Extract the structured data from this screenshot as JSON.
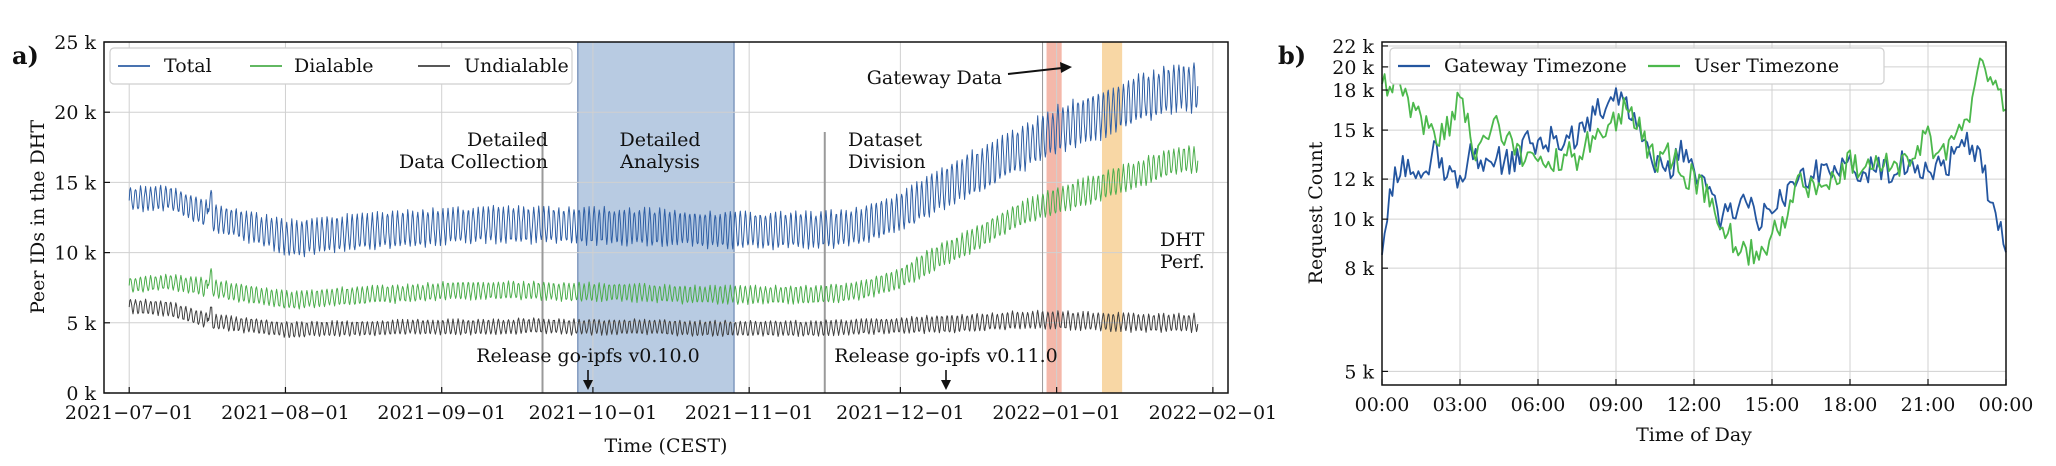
{
  "chart_data": [
    {
      "panel_label": "a)",
      "type": "line",
      "xlabel": "Time (CEST)",
      "ylabel": "Peer IDs in the DHT",
      "x_range": [
        "2021-06-26",
        "2022-02-04"
      ],
      "ylim": [
        0,
        25000
      ],
      "x_ticks": [
        "2021−07−01",
        "2021−08−01",
        "2021−09−01",
        "2021−10−01",
        "2021−11−01",
        "2021−12−01",
        "2022−01−01",
        "2022−02−01"
      ],
      "x_tick_dates": [
        "2021-07-01",
        "2021-08-01",
        "2021-09-01",
        "2021-10-01",
        "2021-11-01",
        "2021-12-01",
        "2022-01-01",
        "2022-02-01"
      ],
      "y_ticks": [
        0,
        5000,
        10000,
        15000,
        20000,
        25000
      ],
      "y_tick_labels": [
        "0 k",
        "5 k",
        "10 k",
        "15 k",
        "20 k",
        "25 k"
      ],
      "grid": true,
      "legend_position": "top-left",
      "series": [
        {
          "name": "Total",
          "color": "#2f5fa5",
          "date": [
            "2021-07-01",
            "2021-07-09",
            "2021-07-17",
            "2021-07-25",
            "2021-08-02",
            "2021-08-10",
            "2021-08-18",
            "2021-08-26",
            "2021-09-03",
            "2021-09-11",
            "2021-09-19",
            "2021-09-27",
            "2021-10-05",
            "2021-10-13",
            "2021-10-21",
            "2021-10-29",
            "2021-11-06",
            "2021-11-14",
            "2021-11-22",
            "2021-11-30",
            "2021-12-08",
            "2021-12-16",
            "2021-12-24",
            "2022-01-01",
            "2022-01-09",
            "2022-01-17",
            "2022-01-25"
          ],
          "mean": [
            13800,
            13900,
            12600,
            11800,
            11000,
            11300,
            11500,
            11700,
            11900,
            12000,
            12000,
            11900,
            11900,
            11800,
            11700,
            11600,
            11600,
            11600,
            11800,
            12700,
            14300,
            15700,
            17200,
            18700,
            19700,
            20900,
            21800
          ],
          "amp": [
            800,
            800,
            900,
            1000,
            1200,
            1200,
            1200,
            1200,
            1200,
            1200,
            1200,
            1200,
            1200,
            1200,
            1200,
            1200,
            1200,
            1200,
            1200,
            1300,
            1400,
            1500,
            1500,
            1600,
            1600,
            1600,
            1600
          ]
        },
        {
          "name": "Dialable",
          "color": "#4cae4c",
          "date": [
            "2021-07-01",
            "2021-07-09",
            "2021-07-17",
            "2021-07-25",
            "2021-08-02",
            "2021-08-10",
            "2021-08-18",
            "2021-08-26",
            "2021-09-03",
            "2021-09-11",
            "2021-09-19",
            "2021-09-27",
            "2021-10-05",
            "2021-10-13",
            "2021-10-21",
            "2021-10-29",
            "2021-11-06",
            "2021-11-14",
            "2021-11-22",
            "2021-11-30",
            "2021-12-08",
            "2021-12-16",
            "2021-12-24",
            "2022-01-01",
            "2022-01-09",
            "2022-01-17",
            "2022-01-25"
          ],
          "mean": [
            7700,
            7900,
            7500,
            7000,
            6600,
            6800,
            7000,
            7100,
            7300,
            7300,
            7300,
            7200,
            7200,
            7100,
            7000,
            7000,
            7000,
            7000,
            7200,
            8000,
            9600,
            11000,
            12600,
            13700,
            14600,
            15600,
            16600
          ],
          "amp": [
            500,
            500,
            600,
            600,
            600,
            600,
            600,
            600,
            600,
            600,
            600,
            600,
            600,
            600,
            600,
            600,
            600,
            600,
            600,
            700,
            800,
            800,
            800,
            900,
            900,
            900,
            900
          ]
        },
        {
          "name": "Undialable",
          "color": "#404040",
          "date": [
            "2021-07-01",
            "2021-07-09",
            "2021-07-17",
            "2021-07-25",
            "2021-08-02",
            "2021-08-10",
            "2021-08-18",
            "2021-08-26",
            "2021-09-03",
            "2021-09-11",
            "2021-09-19",
            "2021-09-27",
            "2021-10-05",
            "2021-10-13",
            "2021-10-21",
            "2021-10-29",
            "2021-11-06",
            "2021-11-14",
            "2021-11-22",
            "2021-11-30",
            "2021-12-08",
            "2021-12-16",
            "2021-12-24",
            "2022-01-01",
            "2022-01-09",
            "2022-01-17",
            "2022-01-25"
          ],
          "mean": [
            6200,
            6000,
            5100,
            4800,
            4500,
            4600,
            4600,
            4700,
            4700,
            4700,
            4800,
            4700,
            4700,
            4700,
            4600,
            4600,
            4600,
            4600,
            4700,
            4800,
            4900,
            5000,
            5200,
            5200,
            5100,
            5000,
            5000
          ],
          "amp": [
            500,
            500,
            500,
            500,
            500,
            500,
            500,
            500,
            500,
            500,
            500,
            500,
            500,
            500,
            500,
            500,
            500,
            500,
            500,
            500,
            600,
            600,
            600,
            600,
            600,
            600,
            600
          ]
        }
      ],
      "shaded_regions": [
        {
          "label": "Detailed Analysis",
          "start": "2021-09-28",
          "end": "2021-10-29",
          "color": "#b8cbe2"
        },
        {
          "label": "Gateway Data",
          "start": "2021-12-30",
          "end": "2022-01-02",
          "color": "#f4b8aa"
        },
        {
          "label": "DHT Perf.",
          "start": "2022-01-10",
          "end": "2022-01-14",
          "color": "#f8d7a5"
        }
      ],
      "vertical_markers": [
        {
          "date": "2021-09-21",
          "label_lines": [
            "Detailed",
            "Data Collection"
          ],
          "label_side": "left"
        },
        {
          "date": "2021-11-16",
          "label_lines": [
            "Dataset",
            "Division"
          ],
          "label_side": "right"
        }
      ],
      "annotations": [
        {
          "text": "Release go-ipfs v0.10.0",
          "date": "2021-09-28",
          "y": 500
        },
        {
          "text": "Release go-ipfs v0.11.0",
          "date": "2021-12-04",
          "y": 500
        },
        {
          "text": "Gateway Data",
          "date": "2021-12-30",
          "y": 23000
        },
        {
          "text_lines": [
            "DHT",
            "Perf."
          ],
          "date": "2022-01-16",
          "y": 10000
        }
      ]
    },
    {
      "panel_label": "b)",
      "type": "line",
      "xlabel": "Time of Day",
      "ylabel": "Request Count",
      "x_range": [
        0,
        24
      ],
      "ylim": [
        4700,
        22400
      ],
      "y_scale": "log",
      "x_ticks": [
        "00:00",
        "03:00",
        "06:00",
        "09:00",
        "12:00",
        "15:00",
        "18:00",
        "21:00",
        "00:00"
      ],
      "x_tick_values": [
        0,
        3,
        6,
        9,
        12,
        15,
        18,
        21,
        24
      ],
      "y_ticks": [
        5000,
        8000,
        10000,
        12000,
        15000,
        18000,
        20000,
        22000
      ],
      "y_tick_labels": [
        "5 k",
        "8 k",
        "10 k",
        "12 k",
        "15 k",
        "18 k",
        "20 k",
        "22 k"
      ],
      "grid": true,
      "legend_position": "top-left",
      "x": [
        0,
        0.5,
        1,
        1.5,
        2,
        2.5,
        3,
        3.5,
        4,
        4.5,
        5,
        5.5,
        6,
        6.5,
        7,
        7.5,
        8,
        8.5,
        9,
        9.5,
        10,
        10.5,
        11,
        11.5,
        12,
        12.5,
        13,
        13.5,
        14,
        14.5,
        15,
        15.5,
        16,
        16.5,
        17,
        17.5,
        18,
        18.5,
        19,
        19.5,
        20,
        20.5,
        21,
        21.5,
        22,
        22.5,
        23,
        23.5,
        24
      ],
      "series": [
        {
          "name": "Gateway Timezone",
          "color": "#2456a0",
          "values": [
            8500,
            12500,
            13000,
            11500,
            13500,
            12500,
            12000,
            13800,
            12800,
            13200,
            12800,
            14200,
            13800,
            14500,
            14200,
            14800,
            15500,
            16800,
            18000,
            16500,
            14000,
            13000,
            12500,
            13500,
            12500,
            11500,
            9800,
            10500,
            11000,
            9600,
            10800,
            11200,
            12500,
            12000,
            12800,
            12500,
            12600,
            12200,
            13000,
            12500,
            12800,
            12200,
            12500,
            12800,
            13200,
            14500,
            13000,
            10500,
            8600
          ]
        },
        {
          "name": "User Timezone",
          "color": "#4cb84c",
          "values": [
            18500,
            19000,
            17000,
            15500,
            14500,
            15000,
            17500,
            14000,
            13800,
            15500,
            14000,
            13200,
            12500,
            12800,
            13500,
            13200,
            14200,
            15500,
            16000,
            17000,
            14500,
            13000,
            13500,
            12500,
            12000,
            11000,
            10000,
            9000,
            8800,
            8200,
            9200,
            10000,
            12000,
            11500,
            12000,
            12500,
            13000,
            12800,
            13500,
            12500,
            13000,
            14000,
            14500,
            13500,
            13800,
            15500,
            20000,
            18500,
            16500
          ]
        }
      ]
    }
  ]
}
